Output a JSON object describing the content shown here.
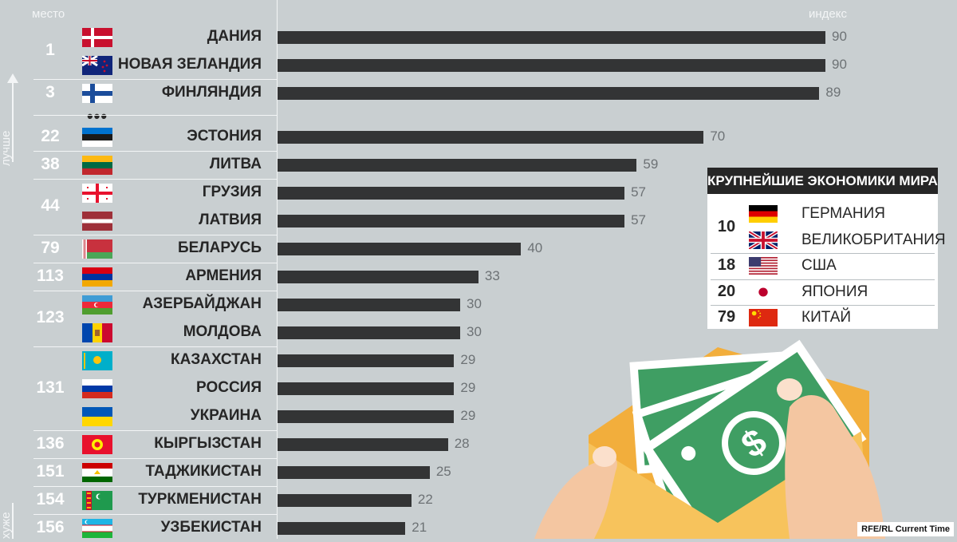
{
  "header": {
    "place_label": "место",
    "index_label": "индекс"
  },
  "side": {
    "better_label": "лучше",
    "worse_label": "хуже"
  },
  "ellipsis": "•••",
  "chart_data": {
    "type": "bar",
    "orientation": "horizontal",
    "xlim": [
      0,
      90
    ],
    "rows": [
      {
        "rank": "1",
        "country": "ДАНИЯ",
        "flag": "denmark",
        "value": 90
      },
      {
        "rank": "",
        "country": "НОВАЯ ЗЕЛАНДИЯ",
        "flag": "new-zealand",
        "value": 90
      },
      {
        "rank": "3",
        "country": "ФИНЛЯНДИЯ",
        "flag": "finland",
        "value": 89
      },
      {
        "rank": "22",
        "country": "ЭСТОНИЯ",
        "flag": "estonia",
        "value": 70
      },
      {
        "rank": "38",
        "country": "ЛИТВА",
        "flag": "lithuania",
        "value": 59
      },
      {
        "rank": "44",
        "country": "ГРУЗИЯ",
        "flag": "georgia",
        "value": 57
      },
      {
        "rank": "",
        "country": "ЛАТВИЯ",
        "flag": "latvia",
        "value": 57
      },
      {
        "rank": "79",
        "country": "БЕЛАРУСЬ",
        "flag": "belarus",
        "value": 40
      },
      {
        "rank": "113",
        "country": "АРМЕНИЯ",
        "flag": "armenia",
        "value": 33
      },
      {
        "rank": "123",
        "country": "АЗЕРБАЙДЖАН",
        "flag": "azerbaijan",
        "value": 30
      },
      {
        "rank": "",
        "country": "МОЛДОВА",
        "flag": "moldova",
        "value": 30
      },
      {
        "rank": "131",
        "country": "КАЗАХСТАН",
        "flag": "kazakhstan",
        "value": 29
      },
      {
        "rank": "",
        "country": "РОССИЯ",
        "flag": "russia",
        "value": 29
      },
      {
        "rank": "",
        "country": "УКРАИНА",
        "flag": "ukraine",
        "value": 29
      },
      {
        "rank": "136",
        "country": "КЫРГЫЗСТАН",
        "flag": "kyrgyzstan",
        "value": 28
      },
      {
        "rank": "151",
        "country": "ТАДЖИКИСТАН",
        "flag": "tajikistan",
        "value": 25
      },
      {
        "rank": "154",
        "country": "ТУРКМЕНИСТАН",
        "flag": "turkmenistan",
        "value": 22
      },
      {
        "rank": "156",
        "country": "УЗБЕКИСТАН",
        "flag": "uzbekistan",
        "value": 21
      }
    ]
  },
  "economies": {
    "title": "КРУПНЕЙШИЕ ЭКОНОМИКИ МИРА",
    "rows": [
      {
        "rank": "10",
        "country": "ГЕРМАНИЯ",
        "flag": "germany"
      },
      {
        "rank": "",
        "country": "ВЕЛИКОБРИТАНИЯ",
        "flag": "uk"
      },
      {
        "rank": "18",
        "country": "США",
        "flag": "usa"
      },
      {
        "rank": "20",
        "country": "ЯПОНИЯ",
        "flag": "japan"
      },
      {
        "rank": "79",
        "country": "КИТАЙ",
        "flag": "china"
      }
    ]
  },
  "credit": "RFE/RL Current Time",
  "illustration": {
    "icon": "money-envelope-icon",
    "symbol": "$"
  }
}
